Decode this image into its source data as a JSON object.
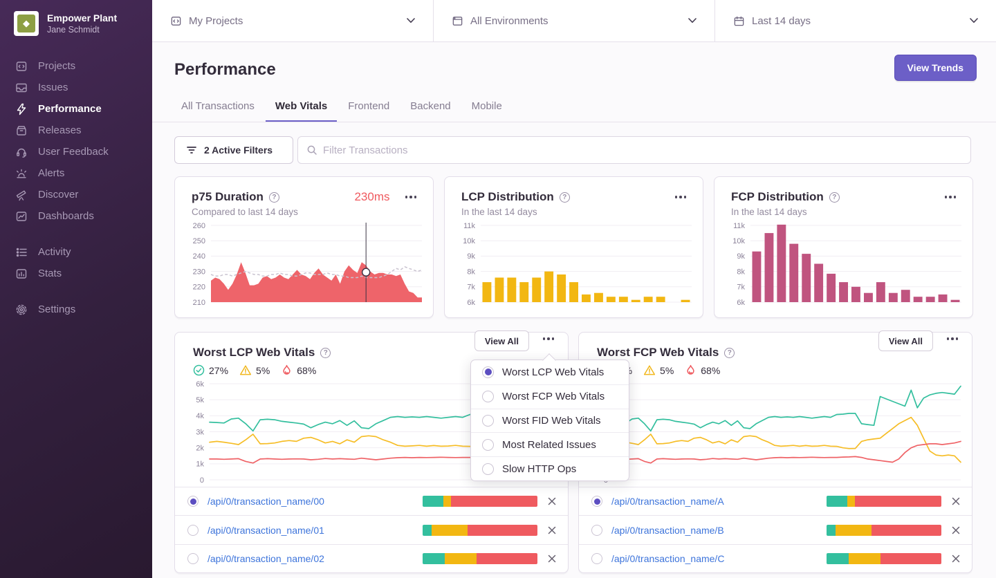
{
  "sidebar": {
    "org": "Empower Plant",
    "user": "Jane Schmidt",
    "primary": [
      {
        "label": "Projects"
      },
      {
        "label": "Issues"
      },
      {
        "label": "Performance",
        "active": true
      },
      {
        "label": "Releases"
      },
      {
        "label": "User Feedback"
      },
      {
        "label": "Alerts"
      },
      {
        "label": "Discover"
      },
      {
        "label": "Dashboards"
      }
    ],
    "secondary": [
      {
        "label": "Activity"
      },
      {
        "label": "Stats"
      }
    ],
    "tertiary": [
      {
        "label": "Settings"
      }
    ]
  },
  "topbar": {
    "project_filter": "My Projects",
    "environment_filter": "All Environments",
    "date_filter": "Last 14 days"
  },
  "header": {
    "title": "Performance",
    "view_trends_label": "View Trends"
  },
  "tabs": [
    {
      "label": "All Transactions"
    },
    {
      "label": "Web Vitals",
      "active": true
    },
    {
      "label": "Frontend"
    },
    {
      "label": "Backend"
    },
    {
      "label": "Mobile"
    }
  ],
  "filters": {
    "active_filters_label": "2 Active Filters",
    "search_placeholder": "Filter Transactions"
  },
  "cards": {
    "p75": {
      "title": "p75 Duration",
      "subtitle": "Compared to last 14 days",
      "value": "230ms"
    },
    "lcp": {
      "title": "LCP Distribution",
      "subtitle": "In the last 14 days"
    },
    "fcp": {
      "title": "FCP Distribution",
      "subtitle": "In the last 14 days"
    },
    "worst_lcp": {
      "title": "Worst LCP Web Vitals",
      "view_all_label": "View All",
      "stats": [
        {
          "icon": "check-circle",
          "value": "27%"
        },
        {
          "icon": "warning-triangle",
          "value": "5%"
        },
        {
          "icon": "flame",
          "value": "68%"
        }
      ],
      "rows": [
        {
          "name": "/api/0/transaction_name/00",
          "selected": true,
          "bar": [
            18,
            7,
            75
          ]
        },
        {
          "name": "/api/0/transaction_name/01",
          "selected": false,
          "bar": [
            8,
            31,
            61
          ]
        },
        {
          "name": "/api/0/transaction_name/02",
          "selected": false,
          "bar": [
            19,
            28,
            53
          ]
        }
      ]
    },
    "worst_fcp": {
      "title": "Worst FCP Web Vitals",
      "view_all_label": "View All",
      "stats": [
        {
          "icon": "check-circle",
          "value": "27%"
        },
        {
          "icon": "warning-triangle",
          "value": "5%"
        },
        {
          "icon": "flame",
          "value": "68%"
        }
      ],
      "rows": [
        {
          "name": "/api/0/transaction_name/A",
          "selected": true,
          "bar": [
            18,
            7,
            75
          ]
        },
        {
          "name": "/api/0/transaction_name/B",
          "selected": false,
          "bar": [
            8,
            31,
            61
          ]
        },
        {
          "name": "/api/0/transaction_name/C",
          "selected": false,
          "bar": [
            19,
            28,
            53
          ]
        }
      ]
    }
  },
  "dropdown": {
    "items": [
      {
        "label": "Worst LCP Web Vitals",
        "selected": true
      },
      {
        "label": "Worst FCP Web Vitals",
        "selected": false
      },
      {
        "label": "Worst FID Web Vitals",
        "selected": false
      },
      {
        "label": "Most Related Issues",
        "selected": false
      },
      {
        "label": "Slow HTTP Ops",
        "selected": false
      }
    ]
  },
  "colors": {
    "accent_purple": "#6c5fc7",
    "link_blue": "#3d74db",
    "red": "#ef5a5f",
    "area_red": "#ee646a",
    "bar_yellow": "#f2b712",
    "bar_magenta": "#c0547f",
    "line_green": "#33bf9e",
    "line_yellow": "#f6bd26",
    "line_red": "#ef6266",
    "sidebar_top": "#472a58",
    "sidebar_bottom": "#291930"
  },
  "chart_data": [
    {
      "id": "p75",
      "type": "area",
      "title": "p75 Duration",
      "subtitle": "Compared to last 14 days",
      "ylim": [
        210,
        260
      ],
      "yticks": [
        260,
        250,
        240,
        230,
        220,
        210
      ],
      "ytick_labels": [
        "260",
        "250",
        "240",
        "230",
        "220",
        "210"
      ],
      "ml": 40,
      "color": "#ee646a",
      "values": [
        224,
        226,
        225,
        222,
        218,
        222,
        228,
        236,
        229,
        221,
        221,
        222,
        226,
        227,
        225,
        226,
        228,
        226,
        225,
        228,
        231,
        228,
        227,
        225,
        229,
        232,
        228,
        226,
        224,
        228,
        222,
        230,
        234,
        231,
        229,
        236,
        234,
        230,
        228,
        229,
        229,
        228,
        228,
        227,
        228,
        222,
        217,
        216,
        213,
        213
      ],
      "comparison": [
        228,
        227,
        227,
        228,
        228,
        227,
        228,
        229,
        230,
        229,
        228,
        228,
        227,
        227,
        228,
        228,
        229,
        228,
        228,
        227,
        227,
        228,
        229,
        229,
        228,
        228,
        228,
        229,
        228,
        228,
        227,
        227,
        226,
        226,
        226,
        227,
        226,
        226,
        226,
        226,
        227,
        228,
        230,
        232,
        231,
        233,
        232,
        231,
        230,
        231
      ],
      "marker": {
        "frac": 0.735,
        "value": 229.5
      }
    },
    {
      "id": "lcp_dist",
      "type": "bar",
      "title": "LCP Distribution",
      "subtitle": "In the last 14 days",
      "ylim": [
        6000,
        11000
      ],
      "yticks": [
        11000,
        10000,
        9000,
        8000,
        7000,
        6000
      ],
      "ytick_labels": [
        "11k",
        "10k",
        "9k",
        "8k",
        "7k",
        "6k"
      ],
      "ml": 40,
      "color": "#f2b712",
      "values": [
        7300,
        7600,
        7600,
        7300,
        7600,
        8000,
        7800,
        7300,
        6500,
        6600,
        6350,
        6350,
        6150,
        6350,
        6350,
        6000,
        6150
      ]
    },
    {
      "id": "fcp_dist",
      "type": "bar",
      "title": "FCP Distribution",
      "subtitle": "In the last 14 days",
      "ylim": [
        6000,
        11000
      ],
      "yticks": [
        11000,
        10000,
        9000,
        8000,
        7000,
        6000
      ],
      "ytick_labels": [
        "11k",
        "10k",
        "9k",
        "8k",
        "7k",
        "6k"
      ],
      "ml": 40,
      "color": "#c0547f",
      "values": [
        9300,
        10500,
        11050,
        9800,
        9150,
        8500,
        7850,
        7300,
        7000,
        6600,
        7300,
        6600,
        6800,
        6350,
        6350,
        6500,
        6150
      ]
    },
    {
      "id": "worst_lcp",
      "type": "line",
      "title": "Worst LCP Web Vitals",
      "ylim": [
        0,
        6000
      ],
      "yticks": [
        6000,
        5000,
        4000,
        3000,
        2000,
        1000,
        0
      ],
      "ytick_labels": [
        "6k",
        "5k",
        "4k",
        "3k",
        "2k",
        "1k",
        "0"
      ],
      "ml": 36,
      "series": [
        {
          "name": "good",
          "color": "#33bf9e",
          "values": [
            3600,
            3580,
            3550,
            3800,
            3850,
            3500,
            3050,
            3750,
            3780,
            3750,
            3650,
            3600,
            3550,
            3480,
            3250,
            3450,
            3600,
            3500,
            3700,
            3400,
            3680,
            3250,
            3200,
            3500,
            3700,
            3900,
            3950,
            3900,
            3930,
            3900,
            3950,
            3900,
            3850,
            3900,
            3950,
            3900,
            4080,
            4100,
            4150,
            4150,
            3500,
            3450,
            3400,
            5200,
            5100,
            4950,
            4850,
            4750,
            4650
          ]
        },
        {
          "name": "meh",
          "color": "#f6bd26",
          "values": [
            2350,
            2400,
            2350,
            2280,
            2200,
            2500,
            2850,
            2250,
            2260,
            2300,
            2400,
            2450,
            2400,
            2600,
            2650,
            2500,
            2300,
            2400,
            2250,
            2500,
            2350,
            2700,
            2750,
            2700,
            2500,
            2350,
            2150,
            2100,
            2120,
            2150,
            2100,
            2140,
            2100,
            2110,
            2150,
            2100,
            2090,
            2000,
            1950,
            1960,
            2400,
            2450,
            2500,
            2550,
            2800,
            3000,
            3200,
            3350,
            3450
          ]
        },
        {
          "name": "poor",
          "color": "#ef6266",
          "values": [
            1300,
            1300,
            1280,
            1300,
            1320,
            1150,
            1050,
            1300,
            1320,
            1300,
            1280,
            1300,
            1310,
            1300,
            1250,
            1280,
            1330,
            1300,
            1320,
            1300,
            1280,
            1350,
            1300,
            1250,
            1300,
            1350,
            1380,
            1400,
            1380,
            1400,
            1390,
            1400,
            1410,
            1400,
            1390,
            1400,
            1400,
            1420,
            1430,
            1450,
            1400,
            1300,
            1280,
            1250,
            1200,
            1100,
            1050,
            1000,
            950
          ]
        }
      ]
    },
    {
      "id": "worst_fcp",
      "type": "line",
      "title": "Worst FCP Web Vitals",
      "ylim": [
        0,
        6000
      ],
      "yticks": [
        6000,
        5000,
        4000,
        3000,
        2000,
        1000,
        0
      ],
      "ytick_labels": [
        "6k",
        "5k",
        "4k",
        "3k",
        "2k",
        "1k",
        "0"
      ],
      "ml": 36,
      "series": [
        {
          "name": "good",
          "color": "#33bf9e",
          "values": [
            3600,
            3580,
            3550,
            3800,
            3850,
            3500,
            3050,
            3750,
            3780,
            3750,
            3650,
            3600,
            3550,
            3480,
            3250,
            3450,
            3600,
            3500,
            3700,
            3400,
            3680,
            3250,
            3200,
            3500,
            3700,
            3900,
            3950,
            3900,
            3930,
            3900,
            3950,
            3900,
            3850,
            3900,
            3950,
            3900,
            4080,
            4100,
            4150,
            4150,
            3500,
            3450,
            3400,
            5200,
            5050,
            4900,
            4750,
            4600,
            5600,
            4500,
            5100,
            5300,
            5400,
            5450,
            5400,
            5350,
            5850
          ]
        },
        {
          "name": "meh",
          "color": "#f6bd26",
          "values": [
            2350,
            2400,
            2350,
            2280,
            2200,
            2500,
            2850,
            2250,
            2260,
            2300,
            2400,
            2450,
            2400,
            2600,
            2650,
            2500,
            2300,
            2400,
            2250,
            2500,
            2350,
            2700,
            2750,
            2700,
            2500,
            2350,
            2150,
            2100,
            2120,
            2150,
            2100,
            2140,
            2100,
            2110,
            2150,
            2100,
            2090,
            2000,
            1950,
            1960,
            2400,
            2500,
            2550,
            2600,
            2900,
            3200,
            3500,
            3700,
            3900,
            3400,
            2600,
            1800,
            1550,
            1500,
            1550,
            1500,
            1100
          ]
        },
        {
          "name": "poor",
          "color": "#ef6266",
          "values": [
            1300,
            1300,
            1280,
            1300,
            1320,
            1150,
            1050,
            1300,
            1320,
            1300,
            1280,
            1300,
            1310,
            1300,
            1250,
            1280,
            1330,
            1300,
            1320,
            1300,
            1280,
            1350,
            1300,
            1250,
            1300,
            1350,
            1380,
            1400,
            1380,
            1400,
            1390,
            1400,
            1410,
            1400,
            1390,
            1400,
            1400,
            1420,
            1430,
            1450,
            1400,
            1300,
            1250,
            1200,
            1150,
            1100,
            1300,
            1700,
            2000,
            2150,
            2200,
            2250,
            2250,
            2200,
            2250,
            2300,
            2400
          ]
        }
      ]
    }
  ]
}
